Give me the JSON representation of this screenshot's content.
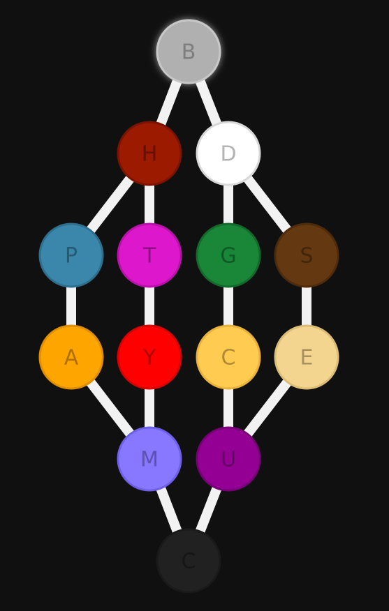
{
  "diagram": {
    "background": "#101010",
    "edge_color": "#f2f2f2",
    "nodes": [
      {
        "id": "n_B",
        "label": "B",
        "fill": "#b0b0b0",
        "border": "#c8c8c8",
        "text": "#555555",
        "glow": true,
        "pos": "row1-center"
      },
      {
        "id": "n_H",
        "label": "H",
        "fill": "#9b1a00",
        "border": "#7a1400",
        "text": "#3a0800",
        "pos": "row2-col2"
      },
      {
        "id": "n_D",
        "label": "D",
        "fill": "#ffffff",
        "border": "#d8d8d8",
        "text": "#777777",
        "pos": "row2-col3"
      },
      {
        "id": "n_P",
        "label": "P",
        "fill": "#3a87ab",
        "border": "#2f6f8e",
        "text": "#143445",
        "pos": "row3-col1"
      },
      {
        "id": "n_T",
        "label": "T",
        "fill": "#dd17cc",
        "border": "#b812a8",
        "text": "#520a4b",
        "pos": "row3-col2"
      },
      {
        "id": "n_G",
        "label": "G",
        "fill": "#1a8738",
        "border": "#146a2c",
        "text": "#083015",
        "pos": "row3-col3"
      },
      {
        "id": "n_S",
        "label": "S",
        "fill": "#643810",
        "border": "#4e2b0c",
        "text": "#261505",
        "pos": "row3-col4"
      },
      {
        "id": "n_A",
        "label": "A",
        "fill": "#ffa500",
        "border": "#e08f00",
        "text": "#6b4500",
        "pos": "row4-col1"
      },
      {
        "id": "n_Y",
        "label": "Y",
        "fill": "#ff0000",
        "border": "#d80000",
        "text": "#6a0000",
        "pos": "row4-col2"
      },
      {
        "id": "n_C1",
        "label": "C",
        "fill": "#ffcb50",
        "border": "#e8b23c",
        "text": "#6d5320",
        "pos": "row4-col3"
      },
      {
        "id": "n_E",
        "label": "E",
        "fill": "#f4d590",
        "border": "#dcbd78",
        "text": "#6a5a3a",
        "pos": "row4-col4"
      },
      {
        "id": "n_M",
        "label": "M",
        "fill": "#8778ff",
        "border": "#6f60e8",
        "text": "#3a3270",
        "pos": "row5-col2"
      },
      {
        "id": "n_U",
        "label": "U",
        "fill": "#930093",
        "border": "#770077",
        "text": "#3d003d",
        "pos": "row5-col3"
      },
      {
        "id": "n_C2",
        "label": "C",
        "fill": "#212121",
        "border": "#1a1a1a",
        "text": "#0c0c0c",
        "pos": "row6-center"
      }
    ],
    "edges": [
      {
        "from": "n_B",
        "to": "n_H"
      },
      {
        "from": "n_B",
        "to": "n_D"
      },
      {
        "from": "n_H",
        "to": "n_P"
      },
      {
        "from": "n_H",
        "to": "n_T"
      },
      {
        "from": "n_D",
        "to": "n_G"
      },
      {
        "from": "n_D",
        "to": "n_S"
      },
      {
        "from": "n_P",
        "to": "n_A"
      },
      {
        "from": "n_T",
        "to": "n_Y"
      },
      {
        "from": "n_G",
        "to": "n_C1"
      },
      {
        "from": "n_S",
        "to": "n_E"
      },
      {
        "from": "n_A",
        "to": "n_M"
      },
      {
        "from": "n_Y",
        "to": "n_M"
      },
      {
        "from": "n_C1",
        "to": "n_U"
      },
      {
        "from": "n_E",
        "to": "n_U"
      },
      {
        "from": "n_M",
        "to": "n_C2"
      },
      {
        "from": "n_U",
        "to": "n_C2"
      }
    ]
  }
}
